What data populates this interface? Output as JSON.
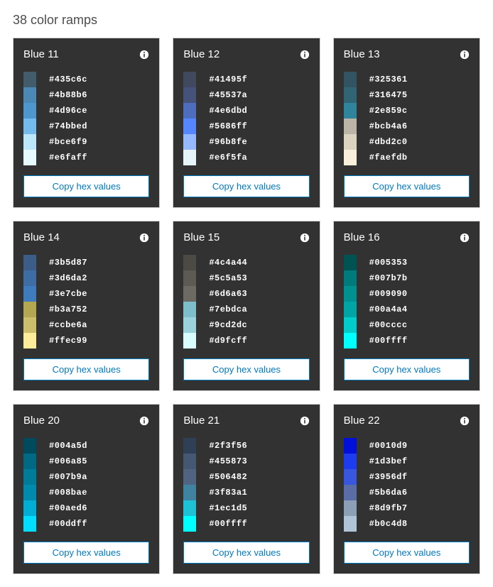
{
  "page_title": "38 color ramps",
  "copy_button_label": "Copy hex values",
  "info_icon_color": "#ffffff",
  "card_bg": "#323232",
  "ramps": [
    {
      "title": "Blue 11",
      "colors": [
        "#435c6c",
        "#4b88b6",
        "#4d96ce",
        "#74bbed",
        "#bce6f9",
        "#e6faff"
      ]
    },
    {
      "title": "Blue 12",
      "colors": [
        "#41495f",
        "#45537a",
        "#4e6dbd",
        "#5686ff",
        "#96b8fe",
        "#e6f5fa"
      ]
    },
    {
      "title": "Blue 13",
      "colors": [
        "#325361",
        "#316475",
        "#2e859c",
        "#bcb4a6",
        "#dbd2c0",
        "#faefdb"
      ]
    },
    {
      "title": "Blue 14",
      "colors": [
        "#3b5d87",
        "#3d6da2",
        "#3e7cbe",
        "#b3a752",
        "#ccbe6a",
        "#ffec99"
      ]
    },
    {
      "title": "Blue 15",
      "colors": [
        "#4c4a44",
        "#5c5a53",
        "#6d6a63",
        "#7ebdca",
        "#9cd2dc",
        "#d9fcff"
      ]
    },
    {
      "title": "Blue 16",
      "colors": [
        "#005353",
        "#007b7b",
        "#009090",
        "#00a4a4",
        "#00cccc",
        "#00ffff"
      ]
    },
    {
      "title": "Blue 20",
      "colors": [
        "#004a5d",
        "#006a85",
        "#007b9a",
        "#008bae",
        "#00aed6",
        "#00ddff"
      ]
    },
    {
      "title": "Blue 21",
      "colors": [
        "#2f3f56",
        "#455873",
        "#506482",
        "#3f83a1",
        "#1ec1d5",
        "#00ffff"
      ]
    },
    {
      "title": "Blue 22",
      "colors": [
        "#0010d9",
        "#1d3bef",
        "#3956df",
        "#5b6da6",
        "#8d9fb7",
        "#b0c4d8"
      ]
    }
  ]
}
